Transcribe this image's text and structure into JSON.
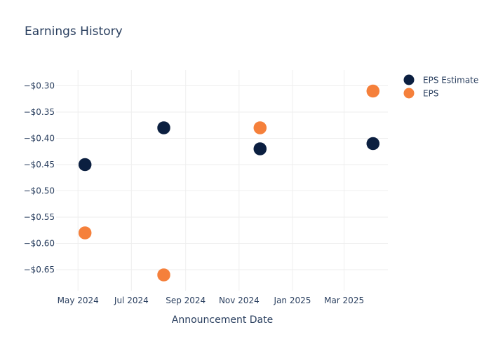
{
  "chart_data": {
    "type": "scatter",
    "title": "Earnings History",
    "xlabel": "Announcement Date",
    "ylabel": "",
    "x_ticks": [
      {
        "date": "2024-05-01",
        "label": "May 2024"
      },
      {
        "date": "2024-07-01",
        "label": "Jul 2024"
      },
      {
        "date": "2024-09-01",
        "label": "Sep 2024"
      },
      {
        "date": "2024-11-01",
        "label": "Nov 2024"
      },
      {
        "date": "2025-01-01",
        "label": "Jan 2025"
      },
      {
        "date": "2025-03-01",
        "label": "Mar 2025"
      }
    ],
    "xlim": [
      "2024-04-06",
      "2025-04-20"
    ],
    "y_ticks": [
      {
        "value": -0.3,
        "label": "−$0.30"
      },
      {
        "value": -0.35,
        "label": "−$0.35"
      },
      {
        "value": -0.4,
        "label": "−$0.40"
      },
      {
        "value": -0.45,
        "label": "−$0.45"
      },
      {
        "value": -0.5,
        "label": "−$0.50"
      },
      {
        "value": -0.55,
        "label": "−$0.55"
      },
      {
        "value": -0.6,
        "label": "−$0.60"
      },
      {
        "value": -0.65,
        "label": "−$0.65"
      }
    ],
    "ylim": [
      -0.69,
      -0.27
    ],
    "grid": true,
    "legend_position": "top-right",
    "series": [
      {
        "name": "EPS Estimate",
        "color": "#0b1f40",
        "points": [
          {
            "x": "2024-05-09",
            "y": -0.45
          },
          {
            "x": "2024-08-07",
            "y": -0.38
          },
          {
            "x": "2024-11-25",
            "y": -0.42
          },
          {
            "x": "2025-04-03",
            "y": -0.41
          }
        ]
      },
      {
        "name": "EPS",
        "color": "#f5803b",
        "points": [
          {
            "x": "2024-05-09",
            "y": -0.58
          },
          {
            "x": "2024-08-07",
            "y": -0.66
          },
          {
            "x": "2024-11-25",
            "y": -0.38
          },
          {
            "x": "2025-04-03",
            "y": -0.31
          }
        ]
      }
    ]
  },
  "colors": {
    "grid": "#eeeeee",
    "text": "#2a3f5f"
  }
}
